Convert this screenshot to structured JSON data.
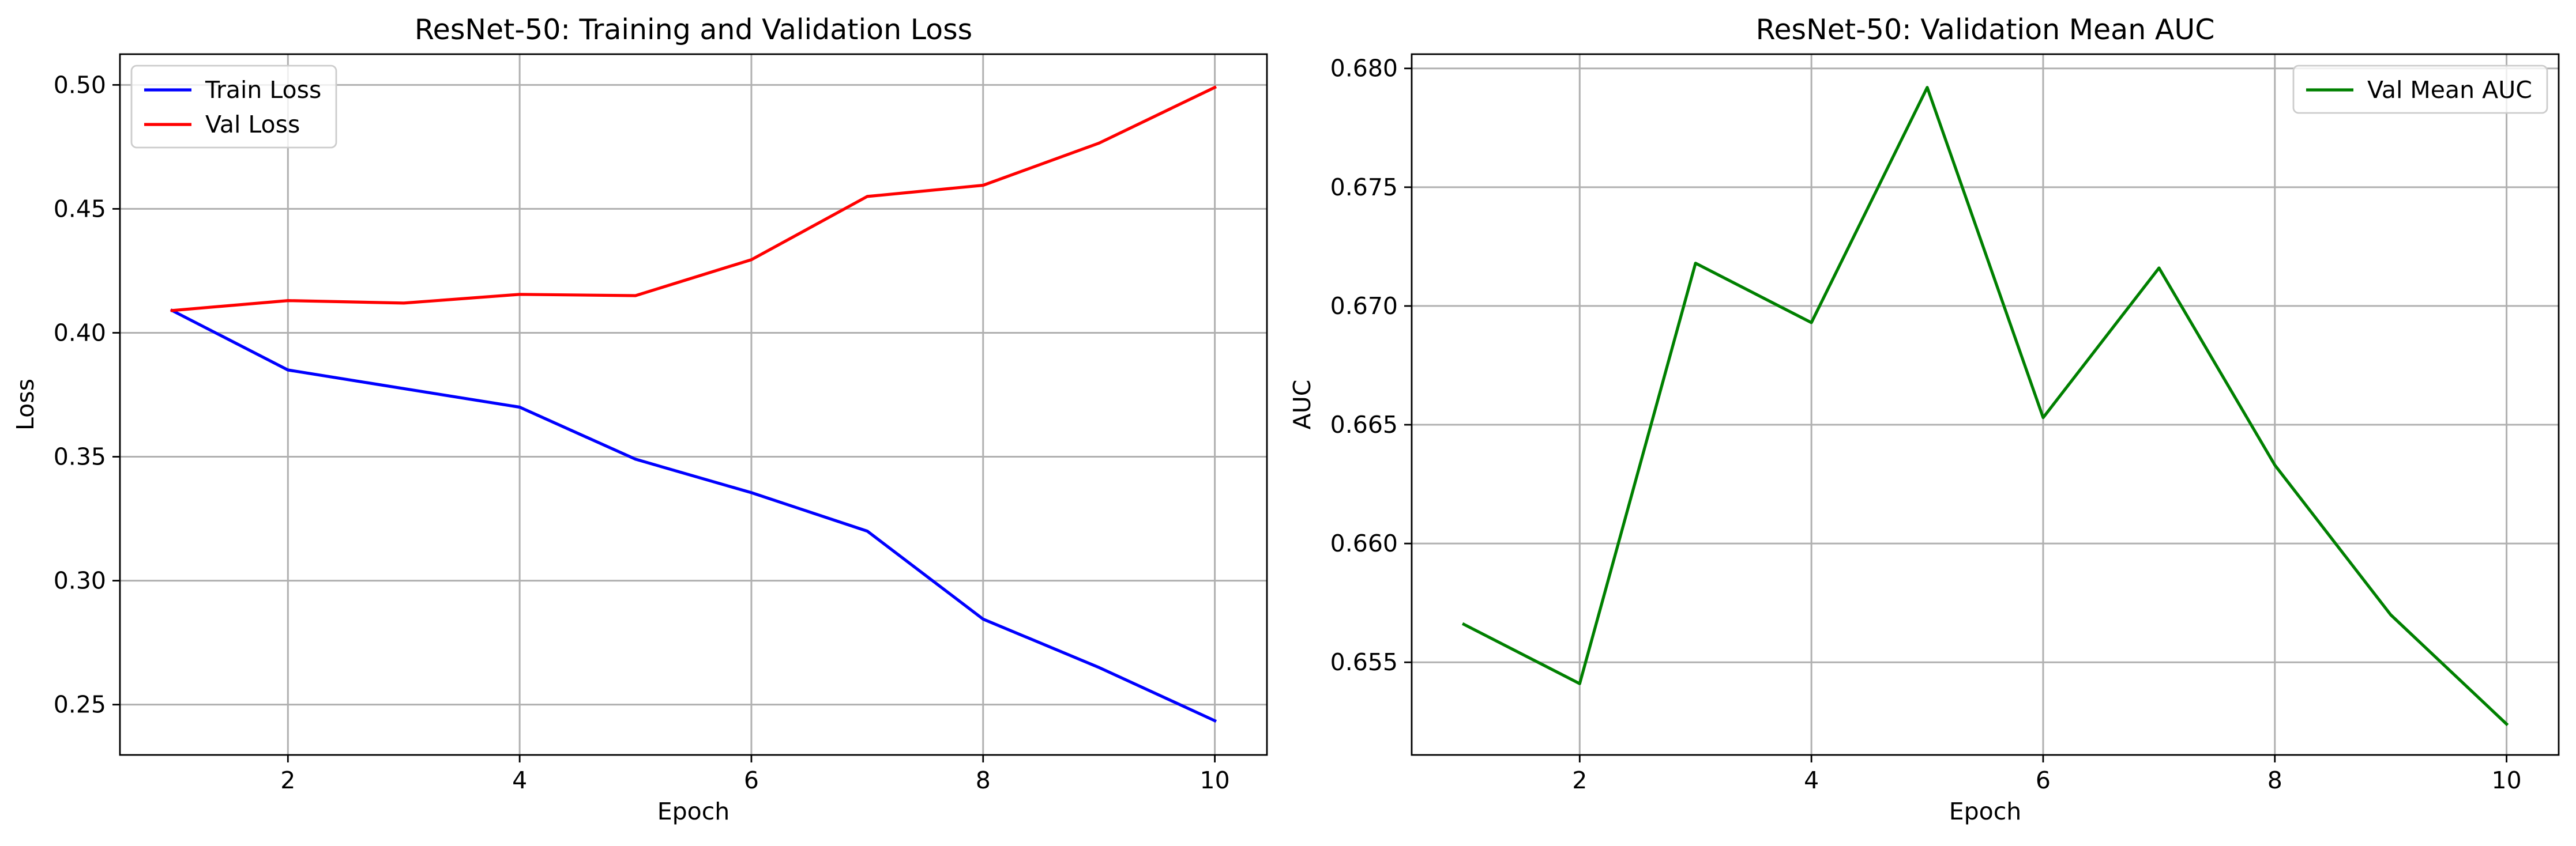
{
  "chart_data": [
    {
      "type": "line",
      "title": "ResNet-50: Training and Validation Loss",
      "xlabel": "Epoch",
      "ylabel": "Loss",
      "x": [
        1,
        2,
        3,
        4,
        5,
        6,
        7,
        8,
        9,
        10
      ],
      "xlim": [
        0.55,
        10.45
      ],
      "ylim": [
        0.2297,
        0.5124
      ],
      "xticks": [
        2,
        4,
        6,
        8,
        10
      ],
      "yticks": [
        0.25,
        0.3,
        0.35,
        0.4,
        0.45,
        0.5
      ],
      "ytick_labels": [
        "0.25",
        "0.30",
        "0.35",
        "0.40",
        "0.45",
        "0.50"
      ],
      "grid": true,
      "legend_position": "top-left",
      "series": [
        {
          "name": "Train Loss",
          "color": "#0000ff",
          "values": [
            0.409,
            0.385,
            0.3775,
            0.37,
            0.349,
            0.3355,
            0.32,
            0.2845,
            0.265,
            0.2435
          ]
        },
        {
          "name": "Val Loss",
          "color": "#ff0000",
          "values": [
            0.409,
            0.413,
            0.412,
            0.4155,
            0.415,
            0.4295,
            0.455,
            0.4595,
            0.4765,
            0.499
          ]
        }
      ]
    },
    {
      "type": "line",
      "title": "ResNet-50: Validation Mean AUC",
      "xlabel": "Epoch",
      "ylabel": "AUC",
      "x": [
        1,
        2,
        3,
        4,
        5,
        6,
        7,
        8,
        9,
        10
      ],
      "xlim": [
        0.55,
        10.45
      ],
      "ylim": [
        0.6511,
        0.6806
      ],
      "xticks": [
        2,
        4,
        6,
        8,
        10
      ],
      "yticks": [
        0.655,
        0.66,
        0.665,
        0.67,
        0.675,
        0.68
      ],
      "ytick_labels": [
        "0.655",
        "0.660",
        "0.665",
        "0.670",
        "0.675",
        "0.680"
      ],
      "grid": true,
      "legend_position": "top-right",
      "series": [
        {
          "name": "Val Mean AUC",
          "color": "#008000",
          "values": [
            0.6566,
            0.6541,
            0.6718,
            0.6693,
            0.6792,
            0.6653,
            0.6716,
            0.6633,
            0.657,
            0.6524
          ]
        }
      ]
    }
  ]
}
